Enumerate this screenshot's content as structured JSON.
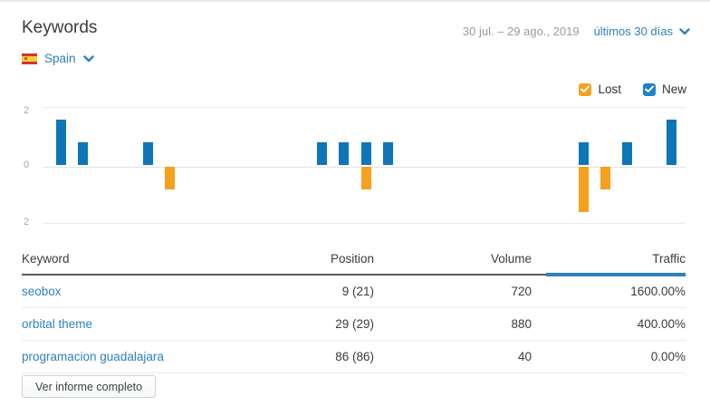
{
  "header": {
    "title": "Keywords",
    "date_range": "30 jul. – 29 ago., 2019",
    "period_selector": "últimos 30 días",
    "country": "Spain"
  },
  "legend": {
    "lost_label": "Lost",
    "new_label": "New",
    "lost_checked": true,
    "new_checked": true
  },
  "colors": {
    "new_bar": "#0e76b8",
    "lost_bar": "#f6a01e",
    "new_checkbox": "#1e82c8",
    "lost_checkbox": "#f6a01e",
    "link_blue": "#2e80c1",
    "sort_indicator": "#2e80c1"
  },
  "chart_data": {
    "type": "bar",
    "title": "New vs Lost keywords per day",
    "x_range": [
      "30 jul. 2019",
      "29 ago. 2019"
    ],
    "n_days": 30,
    "series": [
      {
        "name": "New",
        "color": "#0e76b8",
        "values": [
          0,
          2,
          1,
          0,
          0,
          1,
          0,
          0,
          0,
          0,
          0,
          0,
          0,
          1,
          1,
          1,
          1,
          0,
          0,
          0,
          0,
          0,
          0,
          0,
          0,
          1,
          0,
          1,
          0,
          2
        ]
      },
      {
        "name": "Lost",
        "color": "#f6a01e",
        "values": [
          0,
          0,
          0,
          0,
          0,
          0,
          -1,
          0,
          0,
          0,
          0,
          0,
          0,
          0,
          0,
          -1,
          0,
          0,
          0,
          0,
          0,
          0,
          0,
          0,
          0,
          -2,
          -1,
          0,
          0,
          0
        ]
      }
    ],
    "ylim": [
      -2,
      2
    ],
    "ytick_labels": [
      "2",
      "0",
      "2"
    ],
    "grid": true,
    "legend_position": "top-right"
  },
  "table": {
    "columns": [
      "Keyword",
      "Position",
      "Volume",
      "Traffic"
    ],
    "sorted_by": "Traffic",
    "rows": [
      {
        "keyword": "seobox",
        "position": "9 (21)",
        "volume": "720",
        "traffic": "1600.00%"
      },
      {
        "keyword": "orbital theme",
        "position": "29 (29)",
        "volume": "880",
        "traffic": "400.00%"
      },
      {
        "keyword": "programacion guadalajara",
        "position": "86 (86)",
        "volume": "40",
        "traffic": "0.00%"
      }
    ]
  },
  "footer": {
    "view_full_report_label": "Ver informe completo"
  }
}
